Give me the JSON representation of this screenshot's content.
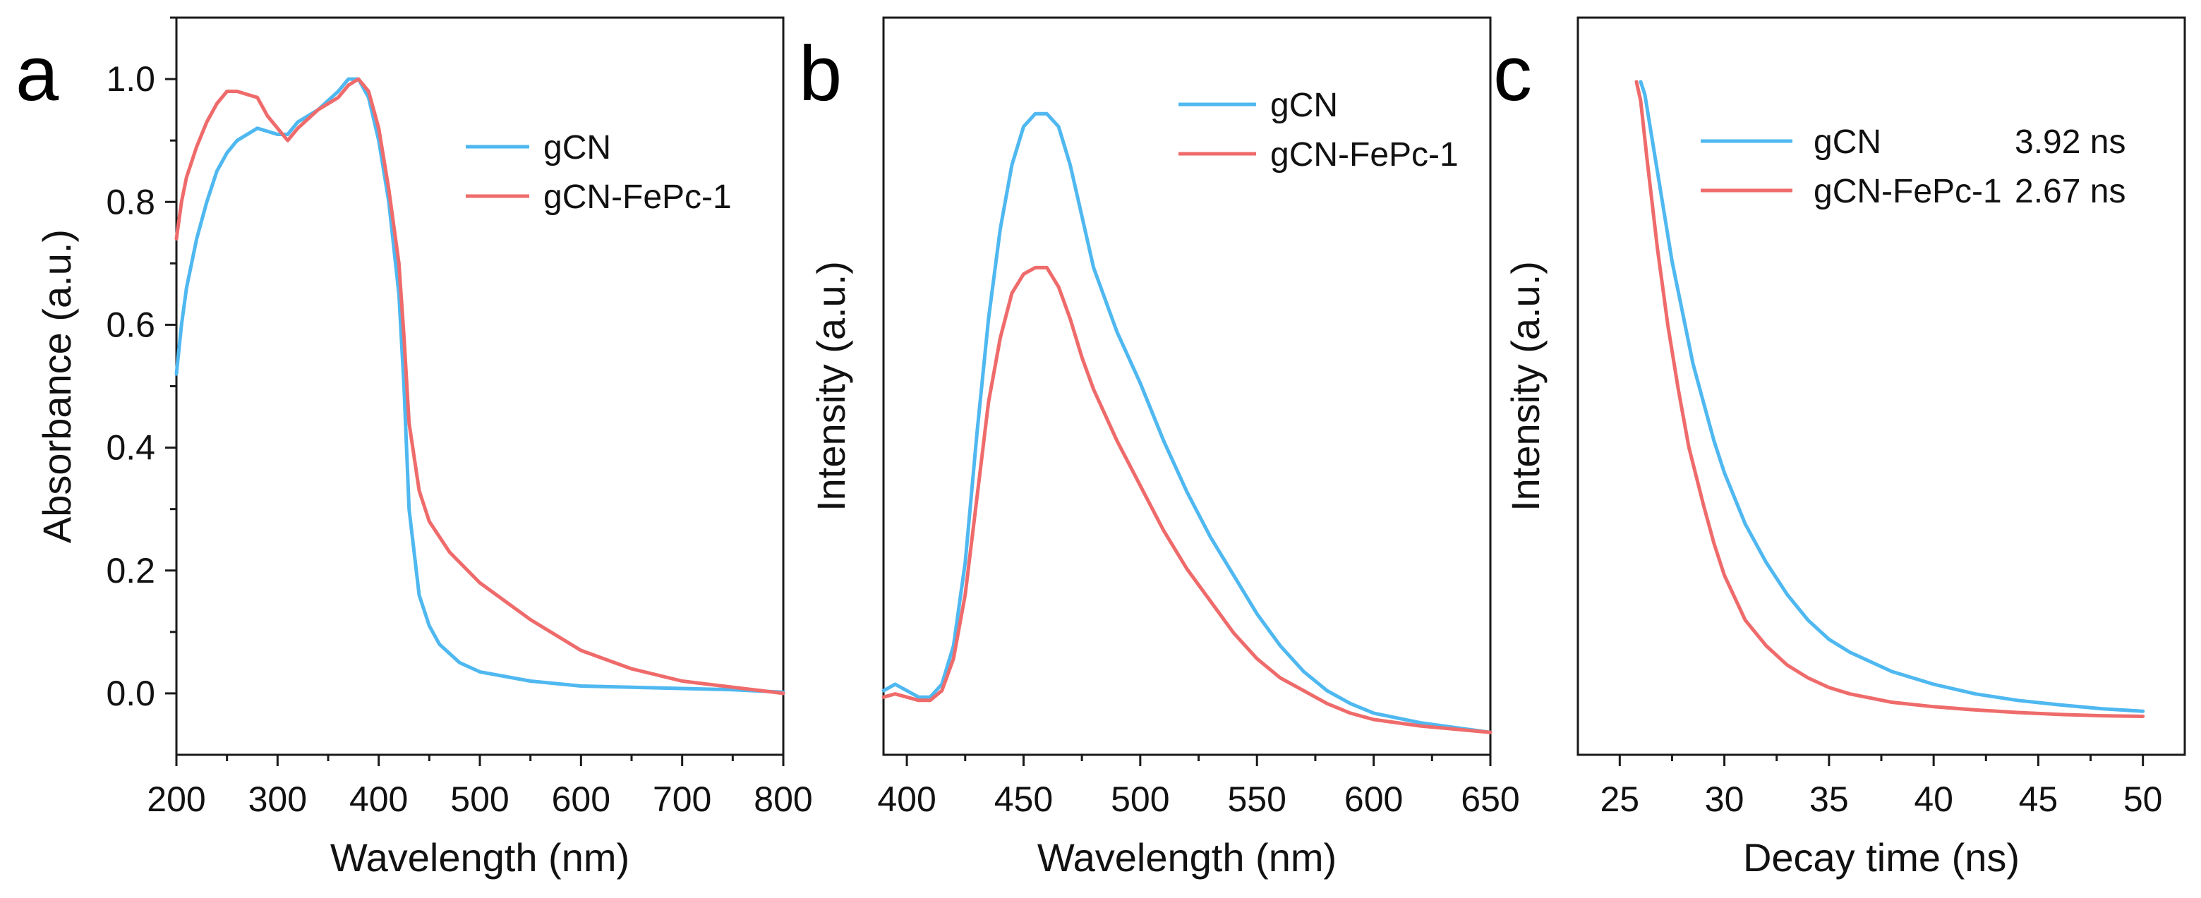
{
  "colors": {
    "gCN": "#4fb8f0",
    "gCN-FePc-1": "#ef6b6b",
    "axis": "#1a1a1a"
  },
  "chart_data": [
    {
      "id": "a",
      "type": "line",
      "panel_letter": "a",
      "xlabel": "Wavelength (nm)",
      "ylabel": "Absorbance (a.u.)",
      "xlim": [
        200,
        800
      ],
      "ylim": [
        -0.1,
        1.1
      ],
      "xticks": [
        200,
        300,
        400,
        500,
        600,
        700,
        800
      ],
      "xtick_labels": [
        "200",
        "300",
        "400",
        "500",
        "600",
        "700",
        "800"
      ],
      "yticks": [
        0.0,
        0.2,
        0.4,
        0.6,
        0.8,
        1.0
      ],
      "ytick_labels": [
        "0.0",
        "0.2",
        "0.4",
        "0.6",
        "0.8",
        "1.0"
      ],
      "legend_position": "top-right",
      "series": [
        {
          "name": "gCN",
          "color": "#4fb8f0",
          "x": [
            200,
            205,
            210,
            220,
            230,
            240,
            250,
            260,
            280,
            300,
            310,
            320,
            340,
            360,
            370,
            380,
            390,
            400,
            410,
            420,
            425,
            430,
            440,
            450,
            460,
            480,
            500,
            550,
            600,
            650,
            700,
            750,
            800
          ],
          "y": [
            0.52,
            0.6,
            0.66,
            0.74,
            0.8,
            0.85,
            0.88,
            0.9,
            0.92,
            0.91,
            0.91,
            0.93,
            0.95,
            0.98,
            1.0,
            1.0,
            0.97,
            0.9,
            0.8,
            0.65,
            0.5,
            0.3,
            0.16,
            0.11,
            0.08,
            0.05,
            0.035,
            0.02,
            0.012,
            0.01,
            0.008,
            0.006,
            0.002
          ]
        },
        {
          "name": "gCN-FePc-1",
          "color": "#ef6b6b",
          "x": [
            200,
            205,
            210,
            220,
            230,
            240,
            250,
            260,
            270,
            280,
            290,
            300,
            310,
            320,
            340,
            360,
            370,
            380,
            390,
            400,
            410,
            420,
            425,
            430,
            440,
            450,
            470,
            500,
            550,
            600,
            650,
            700,
            750,
            800
          ],
          "y": [
            0.74,
            0.8,
            0.84,
            0.89,
            0.93,
            0.96,
            0.98,
            0.98,
            0.975,
            0.97,
            0.94,
            0.92,
            0.9,
            0.92,
            0.95,
            0.97,
            0.99,
            1.0,
            0.98,
            0.92,
            0.82,
            0.7,
            0.58,
            0.44,
            0.33,
            0.28,
            0.23,
            0.18,
            0.12,
            0.07,
            0.04,
            0.02,
            0.01,
            0.0
          ]
        }
      ]
    },
    {
      "id": "b",
      "type": "line",
      "panel_letter": "b",
      "xlabel": "Wavelength (nm)",
      "ylabel": "Intensity (a.u.)",
      "xlim": [
        390,
        650
      ],
      "ylim": [
        0,
        1.15
      ],
      "xticks": [
        400,
        450,
        500,
        550,
        600,
        650
      ],
      "xtick_labels": [
        "400",
        "450",
        "500",
        "550",
        "600",
        "650"
      ],
      "yticks": [],
      "ytick_labels": [],
      "legend_position": "top-right",
      "series": [
        {
          "name": "gCN",
          "color": "#4fb8f0",
          "x": [
            390,
            395,
            400,
            405,
            410,
            415,
            420,
            425,
            430,
            435,
            440,
            445,
            450,
            455,
            460,
            465,
            470,
            475,
            480,
            490,
            500,
            510,
            520,
            530,
            540,
            550,
            560,
            570,
            580,
            590,
            600,
            620,
            650
          ],
          "y": [
            0.1,
            0.11,
            0.1,
            0.09,
            0.09,
            0.11,
            0.17,
            0.3,
            0.5,
            0.68,
            0.82,
            0.92,
            0.98,
            1.0,
            1.0,
            0.98,
            0.92,
            0.84,
            0.76,
            0.66,
            0.58,
            0.49,
            0.41,
            0.34,
            0.28,
            0.22,
            0.17,
            0.13,
            0.1,
            0.08,
            0.065,
            0.05,
            0.035
          ]
        },
        {
          "name": "gCN-FePc-1",
          "color": "#ef6b6b",
          "x": [
            390,
            395,
            400,
            405,
            410,
            415,
            420,
            425,
            430,
            435,
            440,
            445,
            450,
            455,
            460,
            465,
            470,
            475,
            480,
            490,
            500,
            510,
            520,
            530,
            540,
            550,
            560,
            570,
            580,
            590,
            600,
            620,
            650
          ],
          "y": [
            0.09,
            0.095,
            0.09,
            0.085,
            0.085,
            0.1,
            0.15,
            0.25,
            0.4,
            0.55,
            0.65,
            0.72,
            0.75,
            0.76,
            0.76,
            0.73,
            0.68,
            0.62,
            0.57,
            0.49,
            0.42,
            0.35,
            0.29,
            0.24,
            0.19,
            0.15,
            0.12,
            0.1,
            0.08,
            0.065,
            0.055,
            0.045,
            0.035
          ]
        }
      ]
    },
    {
      "id": "c",
      "type": "line",
      "panel_letter": "c",
      "xlabel": "Decay time (ns)",
      "ylabel": "Intensity (a.u.)",
      "xlim": [
        23,
        52
      ],
      "ylim": [
        -0.05,
        1.1
      ],
      "xticks": [
        25,
        30,
        35,
        40,
        45,
        50
      ],
      "xtick_labels": [
        "25",
        "30",
        "35",
        "40",
        "45",
        "50"
      ],
      "yticks": [],
      "ytick_labels": [],
      "legend_position": "top-right",
      "series": [
        {
          "name": "gCN",
          "lifetime": "3.92 ns",
          "color": "#4fb8f0",
          "x": [
            26,
            26.2,
            26.5,
            27,
            27.5,
            28,
            28.5,
            29,
            29.5,
            30,
            31,
            32,
            33,
            34,
            35,
            36,
            38,
            40,
            42,
            44,
            46,
            48,
            50
          ],
          "y": [
            1.0,
            0.98,
            0.92,
            0.82,
            0.72,
            0.64,
            0.56,
            0.5,
            0.44,
            0.39,
            0.31,
            0.25,
            0.2,
            0.16,
            0.13,
            0.11,
            0.08,
            0.06,
            0.045,
            0.035,
            0.028,
            0.022,
            0.018
          ]
        },
        {
          "name": "gCN-FePc-1",
          "lifetime": "2.67 ns",
          "color": "#ef6b6b",
          "x": [
            25.8,
            26,
            26.3,
            26.8,
            27.3,
            27.8,
            28.3,
            29,
            29.5,
            30,
            31,
            32,
            33,
            34,
            35,
            36,
            38,
            40,
            42,
            44,
            46,
            48,
            50
          ],
          "y": [
            1.0,
            0.97,
            0.88,
            0.74,
            0.62,
            0.52,
            0.43,
            0.34,
            0.28,
            0.23,
            0.16,
            0.12,
            0.09,
            0.07,
            0.055,
            0.045,
            0.032,
            0.025,
            0.02,
            0.016,
            0.013,
            0.011,
            0.01
          ]
        }
      ]
    }
  ]
}
